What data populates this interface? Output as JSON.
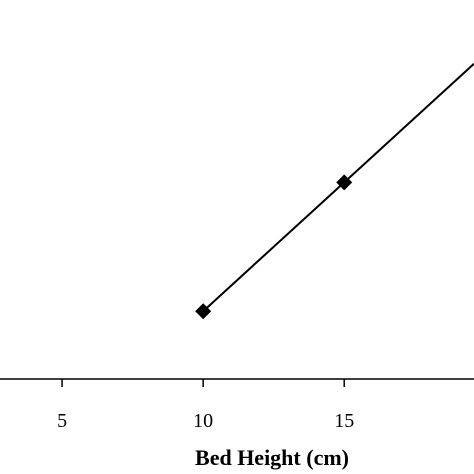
{
  "chart_data": {
    "type": "line",
    "title": "",
    "xlabel": "Bed Height (cm)",
    "ylabel": "",
    "xlim": [
      2.8,
      19.6
    ],
    "ylim": [
      0,
      1
    ],
    "x_ticks": [
      5,
      10,
      15
    ],
    "grid": false,
    "legend": "none",
    "series": [
      {
        "x": [
          10,
          15,
          19.6
        ],
        "y": [
          0.2,
          0.58,
          0.93
        ],
        "marker": "diamond",
        "marker_points": [
          0,
          1
        ],
        "color": "#000000"
      }
    ]
  }
}
